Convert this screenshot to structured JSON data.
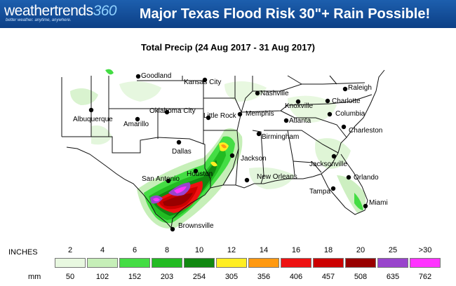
{
  "header": {
    "logo_text": "weathertrends",
    "logo_number": "360",
    "logo_tagline": "better weather. anytime, anywhere.",
    "headline": "Major Texas Flood Risk 30\"+ Rain Possible!"
  },
  "map": {
    "title": "Total Precip (24 Aug 2017 - 31 Aug 2017)",
    "cities": [
      {
        "name": "Goodland"
      },
      {
        "name": "Kansas City"
      },
      {
        "name": "Raleigh"
      },
      {
        "name": "Nashville"
      },
      {
        "name": "Charlotte"
      },
      {
        "name": "Knoxville"
      },
      {
        "name": "Memphis"
      },
      {
        "name": "Columbia"
      },
      {
        "name": "Albuquerque"
      },
      {
        "name": "Oklahoma City"
      },
      {
        "name": "Little Rock"
      },
      {
        "name": "Amarillo"
      },
      {
        "name": "Atlanta"
      },
      {
        "name": "Charleston"
      },
      {
        "name": "Birmingham"
      },
      {
        "name": "Dallas"
      },
      {
        "name": "Jackson"
      },
      {
        "name": "Jacksonville"
      },
      {
        "name": "Houston"
      },
      {
        "name": "New Orleans"
      },
      {
        "name": "San Antonio"
      },
      {
        "name": "Orlando"
      },
      {
        "name": "Tampa"
      },
      {
        "name": "Miami"
      },
      {
        "name": "Brownsville"
      }
    ]
  },
  "legend": {
    "inches_label": "INCHES",
    "mm_label": "mm",
    "bins": [
      {
        "inches": "2",
        "mm": "50",
        "color": "#e8f8e0"
      },
      {
        "inches": "4",
        "mm": "102",
        "color": "#c6efb8"
      },
      {
        "inches": "6",
        "mm": "152",
        "color": "#44dd44"
      },
      {
        "inches": "8",
        "mm": "203",
        "color": "#22bb22"
      },
      {
        "inches": "10",
        "mm": "254",
        "color": "#118811"
      },
      {
        "inches": "12",
        "mm": "305",
        "color": "#ffee22"
      },
      {
        "inches": "14",
        "mm": "356",
        "color": "#ff9911"
      },
      {
        "inches": "16",
        "mm": "406",
        "color": "#ee1111"
      },
      {
        "inches": "18",
        "mm": "457",
        "color": "#cc0000"
      },
      {
        "inches": "20",
        "mm": "508",
        "color": "#990000"
      },
      {
        "inches": "25",
        "mm": "635",
        "color": "#9944cc"
      },
      {
        "inches": ">30",
        "mm": "762",
        "color": "#ff33ff"
      }
    ]
  }
}
